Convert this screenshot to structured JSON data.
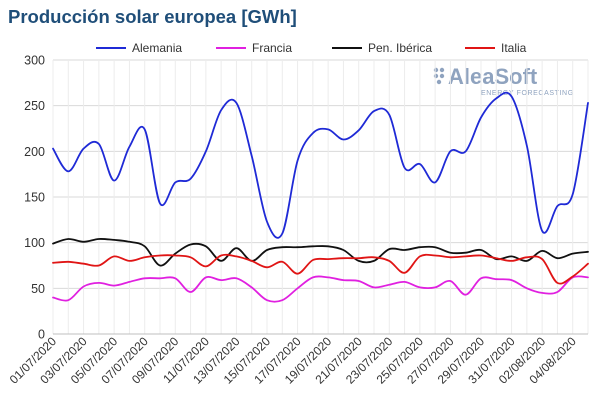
{
  "title": "Producción solar europea [GWh]",
  "logo": {
    "name": "AleaSoft",
    "tagline": "ENERGY FORECASTING",
    "color": "#8fa3bf"
  },
  "chart_data": {
    "type": "line",
    "title": "Producción solar europea [GWh]",
    "xlabel": "",
    "ylabel": "",
    "ylim": [
      0,
      300
    ],
    "yticks": [
      0,
      50,
      100,
      150,
      200,
      250,
      300
    ],
    "grid": true,
    "legend_position": "top",
    "x": [
      "01/07/2020",
      "02/07/2020",
      "03/07/2020",
      "04/07/2020",
      "05/07/2020",
      "06/07/2020",
      "07/07/2020",
      "08/07/2020",
      "09/07/2020",
      "10/07/2020",
      "11/07/2020",
      "12/07/2020",
      "13/07/2020",
      "14/07/2020",
      "15/07/2020",
      "16/07/2020",
      "17/07/2020",
      "18/07/2020",
      "19/07/2020",
      "20/07/2020",
      "21/07/2020",
      "22/07/2020",
      "23/07/2020",
      "24/07/2020",
      "25/07/2020",
      "26/07/2020",
      "27/07/2020",
      "28/07/2020",
      "29/07/2020",
      "30/07/2020",
      "31/07/2020",
      "01/08/2020",
      "02/08/2020",
      "03/08/2020",
      "04/08/2020",
      "05/08/2020"
    ],
    "xtick_labels": [
      "01/07/2020",
      "03/07/2020",
      "05/07/2020",
      "07/07/2020",
      "09/07/2020",
      "11/07/2020",
      "13/07/2020",
      "15/07/2020",
      "17/07/2020",
      "19/07/2020",
      "21/07/2020",
      "23/07/2020",
      "25/07/2020",
      "27/07/2020",
      "29/07/2020",
      "31/07/2020",
      "02/08/2020",
      "04/08/2020"
    ],
    "series": [
      {
        "name": "Alemania",
        "color": "#1f2ad6",
        "values": [
          203,
          178,
          203,
          208,
          168,
          205,
          224,
          143,
          166,
          170,
          200,
          245,
          253,
          195,
          123,
          110,
          190,
          220,
          224,
          213,
          223,
          244,
          240,
          182,
          186,
          166,
          200,
          200,
          237,
          258,
          260,
          206,
          113,
          140,
          153,
          253
        ]
      },
      {
        "name": "Francia",
        "color": "#e020e0",
        "values": [
          40,
          37,
          52,
          56,
          53,
          57,
          61,
          61,
          61,
          46,
          62,
          59,
          61,
          51,
          37,
          37,
          50,
          62,
          62,
          59,
          58,
          51,
          54,
          57,
          51,
          51,
          58,
          43,
          61,
          60,
          59,
          50,
          45,
          46,
          62,
          62
        ]
      },
      {
        "name": "Pen. Ibérica",
        "color": "#111111",
        "values": [
          99,
          104,
          101,
          104,
          103,
          101,
          96,
          75,
          88,
          98,
          96,
          80,
          94,
          80,
          92,
          95,
          95,
          96,
          96,
          92,
          80,
          80,
          93,
          92,
          95,
          95,
          89,
          89,
          92,
          82,
          85,
          80,
          91,
          83,
          88,
          90
        ]
      },
      {
        "name": "Italia",
        "color": "#e01515",
        "values": [
          78,
          79,
          77,
          75,
          85,
          80,
          84,
          86,
          86,
          84,
          74,
          86,
          85,
          80,
          73,
          79,
          66,
          81,
          82,
          83,
          83,
          84,
          80,
          67,
          85,
          86,
          84,
          85,
          86,
          83,
          80,
          84,
          82,
          56,
          63,
          77
        ]
      }
    ]
  }
}
